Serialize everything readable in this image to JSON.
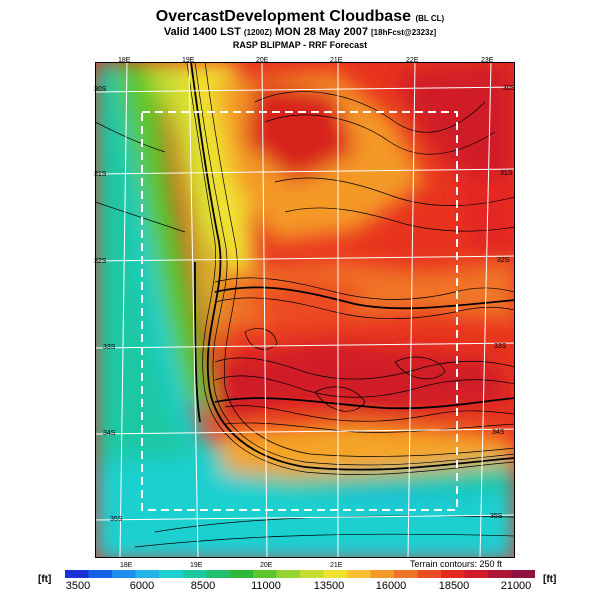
{
  "header": {
    "title": "OvercastDevelopment Cloudbase",
    "title_suffix": "(BL CL)",
    "valid_prefix": "Valid 1400 LST",
    "valid_utc": "(1200Z)",
    "valid_date": "MON 28 May 2007",
    "valid_forecast": "[18hFcst@2323z]",
    "model": "RASP BLIPMAP - RRF Forecast"
  },
  "map": {
    "top_lon_labels": [
      "18E",
      "19E",
      "20E",
      "21E",
      "22E",
      "23E"
    ],
    "bottom_lon_labels": [
      "18E",
      "19E",
      "20E",
      "21E"
    ],
    "left_lat_labels": [
      "30S",
      "31S",
      "32S",
      "33S",
      "34S",
      "35S"
    ],
    "right_lat_labels": [
      "30S",
      "31S",
      "32S",
      "33S",
      "34S",
      "35S"
    ],
    "terrain_note": "Terrain contours: 250 ft"
  },
  "colorbar": {
    "unit_left": "[ft]",
    "unit_right": "[ft]",
    "labels": [
      "3500",
      "6000",
      "8500",
      "11000",
      "13500",
      "16000",
      "18500",
      "21000"
    ],
    "colors": [
      "#1a2fd8",
      "#1560e6",
      "#1e8ef0",
      "#22b4ea",
      "#1ed0d0",
      "#1cc8a4",
      "#22c070",
      "#2eb83c",
      "#5cc62c",
      "#96d430",
      "#c8dc30",
      "#f0e030",
      "#f6c030",
      "#f49828",
      "#f07428",
      "#ec4c24",
      "#e42820",
      "#d01c28",
      "#b01436",
      "#901040"
    ]
  }
}
